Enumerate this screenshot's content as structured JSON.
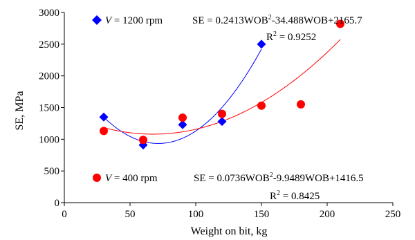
{
  "chart_data": {
    "type": "scatter",
    "title": "",
    "xlabel": "Weight on bit, kg",
    "ylabel": "SE, MPa",
    "xlim": [
      0,
      250
    ],
    "ylim": [
      0,
      3000
    ],
    "xticks": [
      0,
      50,
      100,
      150,
      200,
      250
    ],
    "yticks": [
      0,
      500,
      1000,
      1500,
      2000,
      2500,
      3000
    ],
    "grid": false,
    "series": [
      {
        "name": "V = 1200 rpm",
        "name_var": "V",
        "name_rest": " = 1200 rpm",
        "marker": "diamond",
        "color": "#0000ff",
        "fit_color": "#0000ff",
        "x": [
          30,
          60,
          90,
          120,
          150
        ],
        "y": [
          1350,
          910,
          1230,
          1280,
          2500
        ],
        "fit": {
          "a": 0.2413,
          "b": -34.488,
          "c": 2165.7,
          "x_range": [
            30,
            150
          ]
        },
        "equation_main": "SE = 0.2413WOB",
        "equation_sup": "2",
        "equation_tail": "-34.488WOB+2165.7",
        "r2_label": "R",
        "r2_sup": "2",
        "r2_value": " = 0.9252"
      },
      {
        "name": "V = 400 rpm",
        "name_var": "V",
        "name_rest": " = 400 rpm",
        "marker": "circle",
        "color": "#ff0000",
        "fit_color": "#ff0000",
        "x": [
          30,
          60,
          90,
          120,
          150,
          180,
          210
        ],
        "y": [
          1130,
          990,
          1340,
          1400,
          1530,
          1550,
          2820
        ],
        "fit": {
          "a": 0.0736,
          "b": -9.9489,
          "c": 1416.5,
          "x_range": [
            30,
            210
          ]
        },
        "equation_main": "SE = 0.0736WOB",
        "equation_sup": "2",
        "equation_tail": "-9.9489WOB+1416.5",
        "r2_label": "R",
        "r2_sup": "2",
        "r2_value": " = 0.8425"
      }
    ]
  }
}
